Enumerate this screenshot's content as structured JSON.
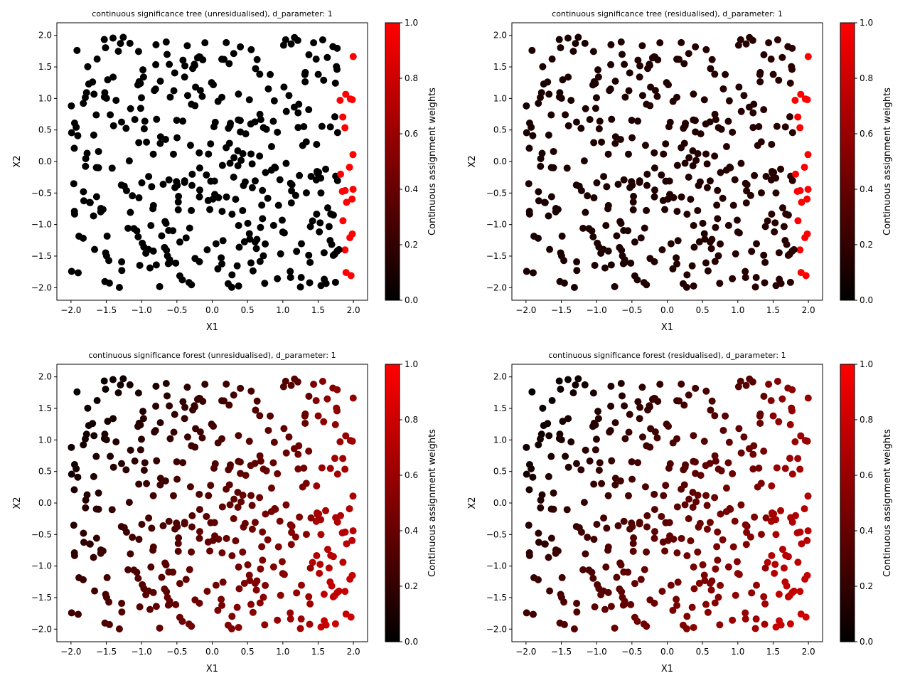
{
  "colorbar": {
    "label": "Continuous assignment weights",
    "ticks": [
      "0.0",
      "0.2",
      "0.4",
      "0.6",
      "0.8",
      "1.0"
    ],
    "range": [
      0,
      1
    ],
    "colormap": [
      "#000000",
      "#ff0000"
    ]
  },
  "chart_data": [
    {
      "type": "scatter",
      "title": "continuous significance tree (unresidualised), d_parameter: 1",
      "xlabel": "X1",
      "ylabel": "X2",
      "xlim": [
        -2.2,
        2.2
      ],
      "ylim": [
        -2.2,
        2.2
      ],
      "xticks": [
        "−2.0",
        "−1.5",
        "−1.0",
        "−0.5",
        "0.0",
        "0.5",
        "1.0",
        "1.5",
        "2.0"
      ],
      "yticks": [
        "−2.0",
        "−1.5",
        "−1.0",
        "−0.5",
        "0.0",
        "0.5",
        "1.0",
        "1.5",
        "2.0"
      ],
      "color_mode": "threshold",
      "n_points": 400,
      "grid": false,
      "colorbar_label": "Continuous assignment weights"
    },
    {
      "type": "scatter",
      "title": "continuous significance tree (residualised), d_parameter: 1",
      "xlabel": "X1",
      "ylabel": "X2",
      "xlim": [
        -2.2,
        2.2
      ],
      "ylim": [
        -2.2,
        2.2
      ],
      "xticks": [
        "−2.0",
        "−1.5",
        "−1.0",
        "−0.5",
        "0.0",
        "0.5",
        "1.0",
        "1.5",
        "2.0"
      ],
      "yticks": [
        "−2.0",
        "−1.5",
        "−1.0",
        "−0.5",
        "0.0",
        "0.5",
        "1.0",
        "1.5",
        "2.0"
      ],
      "color_mode": "threshold_dim",
      "n_points": 400,
      "grid": false,
      "colorbar_label": "Continuous assignment weights"
    },
    {
      "type": "scatter",
      "title": "continuous significance forest (unresidualised), d_parameter: 1",
      "xlabel": "X1",
      "ylabel": "X2",
      "xlim": [
        -2.2,
        2.2
      ],
      "ylim": [
        -2.2,
        2.2
      ],
      "xticks": [
        "−2.0",
        "−1.5",
        "−1.0",
        "−0.5",
        "0.0",
        "0.5",
        "1.0",
        "1.5",
        "2.0"
      ],
      "yticks": [
        "−2.0",
        "−1.5",
        "−1.0",
        "−0.5",
        "0.0",
        "0.5",
        "1.0",
        "1.5",
        "2.0"
      ],
      "color_mode": "gradient",
      "n_points": 400,
      "grid": false,
      "colorbar_label": "Continuous assignment weights"
    },
    {
      "type": "scatter",
      "title": "continuous significance forest (residualised), d_parameter: 1",
      "xlabel": "X1",
      "ylabel": "X2",
      "xlim": [
        -2.2,
        2.2
      ],
      "ylim": [
        -2.2,
        2.2
      ],
      "xticks": [
        "−2.0",
        "−1.5",
        "−1.0",
        "−0.5",
        "0.0",
        "0.5",
        "1.0",
        "1.5",
        "2.0"
      ],
      "yticks": [
        "−2.0",
        "−1.5",
        "−1.0",
        "−0.5",
        "0.0",
        "0.5",
        "1.0",
        "1.5",
        "2.0"
      ],
      "color_mode": "gradient",
      "n_points": 400,
      "grid": false,
      "colorbar_label": "Continuous assignment weights"
    }
  ]
}
